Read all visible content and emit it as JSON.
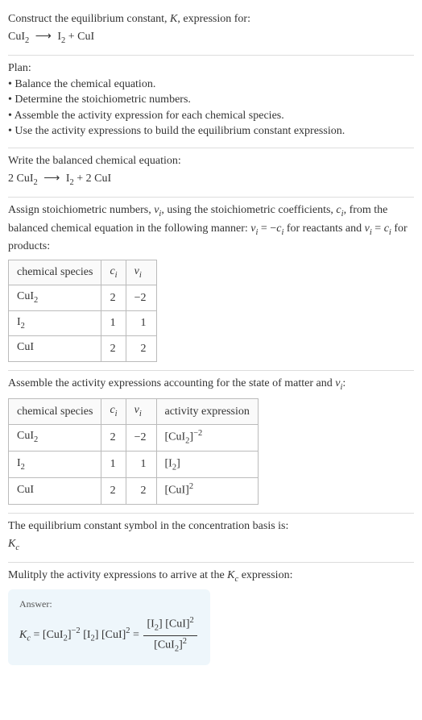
{
  "header": {
    "prompt_line1": "Construct the equilibrium constant, ",
    "K": "K",
    "prompt_line1_after": ", expression for:",
    "reaction_left": "CuI",
    "reaction_left_sub": "2",
    "arrow": "⟶",
    "reaction_prod1": "I",
    "reaction_prod1_sub": "2",
    "plus": " + ",
    "reaction_prod2": "CuI"
  },
  "plan": {
    "title": "Plan:",
    "items": [
      "Balance the chemical equation.",
      "Determine the stoichiometric numbers.",
      "Assemble the activity expression for each chemical species.",
      "Use the activity expressions to build the equilibrium constant expression."
    ]
  },
  "balanced": {
    "title": "Write the balanced chemical equation:",
    "coef1": "2 ",
    "sp1": "CuI",
    "sp1_sub": "2",
    "arrow": "⟶",
    "prod1": "I",
    "prod1_sub": "2",
    "plus": " + ",
    "coef2": "2 ",
    "prod2": "CuI"
  },
  "stoich": {
    "intro_a": "Assign stoichiometric numbers, ",
    "nu": "ν",
    "sub_i": "i",
    "intro_b": ", using the stoichiometric coefficients, ",
    "c": "c",
    "intro_c": ", from the balanced chemical equation in the following manner: ",
    "rel1_a": "ν",
    "rel1_b": " = −",
    "rel1_c": "c",
    "intro_d": " for reactants and ",
    "rel2_a": "ν",
    "rel2_b": " = ",
    "rel2_c": "c",
    "intro_e": " for products:",
    "table": {
      "h1": "chemical species",
      "h2": "c",
      "h3": "ν",
      "rows": [
        {
          "sp": "CuI",
          "sp_sub": "2",
          "c": "2",
          "nu": "−2"
        },
        {
          "sp": "I",
          "sp_sub": "2",
          "c": "1",
          "nu": "1"
        },
        {
          "sp": "CuI",
          "sp_sub": "",
          "c": "2",
          "nu": "2"
        }
      ]
    }
  },
  "activity": {
    "intro_a": "Assemble the activity expressions accounting for the state of matter and ",
    "nu": "ν",
    "sub_i": "i",
    "intro_b": ":",
    "table": {
      "h1": "chemical species",
      "h2": "c",
      "h3": "ν",
      "h4": "activity expression",
      "rows": [
        {
          "sp": "CuI",
          "sp_sub": "2",
          "c": "2",
          "nu": "−2",
          "act_base": "[CuI",
          "act_sub": "2",
          "act_close": "]",
          "act_sup": "−2"
        },
        {
          "sp": "I",
          "sp_sub": "2",
          "c": "1",
          "nu": "1",
          "act_base": "[I",
          "act_sub": "2",
          "act_close": "]",
          "act_sup": ""
        },
        {
          "sp": "CuI",
          "sp_sub": "",
          "c": "2",
          "nu": "2",
          "act_base": "[CuI",
          "act_sub": "",
          "act_close": "]",
          "act_sup": "2"
        }
      ]
    }
  },
  "symbol": {
    "line": "The equilibrium constant symbol in the concentration basis is:",
    "Kc_K": "K",
    "Kc_sub": "c"
  },
  "multiply": {
    "line_a": "Mulitply the activity expressions to arrive at the ",
    "Kc_K": "K",
    "Kc_sub": "c",
    "line_b": " expression:"
  },
  "answer": {
    "label": "Answer:",
    "Kc_K": "K",
    "Kc_sub": "c",
    "eq": " = ",
    "t1_base": "[CuI",
    "t1_sub": "2",
    "t1_close": "]",
    "t1_sup": "−2",
    "sp": " ",
    "t2_base": "[I",
    "t2_sub": "2",
    "t2_close": "]",
    "t3_base": "[CuI",
    "t3_close": "]",
    "t3_sup": "2",
    "eq2": " = ",
    "num_a": "[I",
    "num_a_sub": "2",
    "num_a_close": "] ",
    "num_b": "[CuI]",
    "num_b_sup": "2",
    "den_a": "[CuI",
    "den_a_sub": "2",
    "den_a_close": "]",
    "den_sup": "2"
  }
}
